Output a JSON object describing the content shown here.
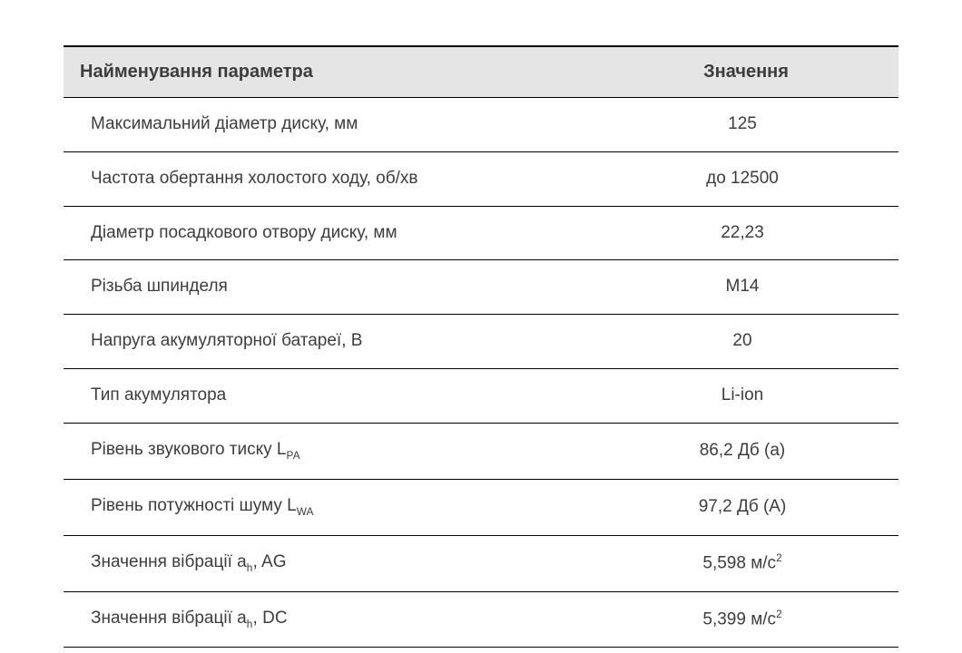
{
  "table": {
    "header_bg": "#e5e5e5",
    "top_border_color": "#000000",
    "row_border_color": "#000000",
    "text_color": "#3d3d3d",
    "font_size_header": 20,
    "font_size_body": 19,
    "columns": [
      {
        "key": "name",
        "label": "Найменування параметра",
        "align": "left"
      },
      {
        "key": "value",
        "label": "Значення",
        "align": "center"
      }
    ],
    "rows": [
      {
        "name": "Максимальний діаметр диску, мм",
        "value": "125"
      },
      {
        "name": "Частота обертання холостого ходу, об/хв",
        "value": "до 12500"
      },
      {
        "name": "Діаметр посадкового отвору диску, мм",
        "value": "22,23"
      },
      {
        "name": "Різьба шпинделя",
        "value": "М14"
      },
      {
        "name": "Напруга акумуляторної батареї, В",
        "value": "20"
      },
      {
        "name": "Тип акумулятора",
        "value": "Li-ion"
      },
      {
        "name_html": "Рівень звукового тиску L<span class=\"sub-small\">PA</span>",
        "value": "86,2 Дб (а)"
      },
      {
        "name_html": "Рівень потужності шуму L<span class=\"sub-small\">WA</span>",
        "value": "97,2 Дб (А)"
      },
      {
        "name_html": "Значення вібрації a<span class=\"sub-small\">h</span>, AG",
        "value_html": "5,598 м/с<span class=\"sup-small\">2</span>"
      },
      {
        "name_html": "Значення вібрації a<span class=\"sub-small\">h</span>, DC",
        "value_html": "5,399 м/с<span class=\"sup-small\">2</span>"
      }
    ]
  }
}
